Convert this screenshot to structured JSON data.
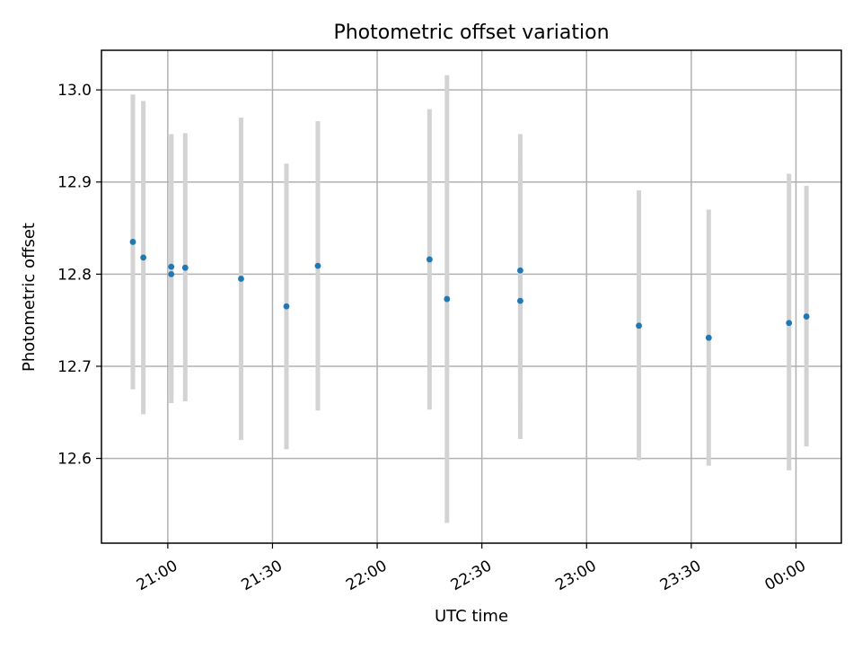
{
  "chart_data": {
    "type": "scatter",
    "title": "Photometric offset variation",
    "xlabel": "UTC time",
    "ylabel": "Photometric offset",
    "xaxis_kind": "time",
    "xlim": [
      "20:41",
      "00:13"
    ],
    "ylim": [
      12.508,
      13.043
    ],
    "x_tick_labels": [
      "21:00",
      "21:30",
      "22:00",
      "22:30",
      "23:00",
      "23:30",
      "00:00"
    ],
    "y_ticks": [
      12.6,
      12.7,
      12.8,
      12.9,
      13.0
    ],
    "y_tick_labels": [
      "12.6",
      "12.7",
      "12.8",
      "12.9",
      "13.0"
    ],
    "grid": true,
    "legend": "none",
    "colors": {
      "marker": "#1f77b4",
      "errorbar": "#d3d3d3",
      "grid": "#b0b0b0",
      "axes": "#000000"
    },
    "series": [
      {
        "points": [
          {
            "x": "20:50",
            "y": 12.835,
            "ylow": 12.675,
            "yhigh": 12.995
          },
          {
            "x": "20:53",
            "y": 12.818,
            "ylow": 12.648,
            "yhigh": 12.988
          },
          {
            "x": "21:01",
            "y": 12.8,
            "ylow": 12.66,
            "yhigh": 12.95
          },
          {
            "x": "21:01",
            "y": 12.808,
            "ylow": 12.668,
            "yhigh": 12.952
          },
          {
            "x": "21:05",
            "y": 12.807,
            "ylow": 12.662,
            "yhigh": 12.953
          },
          {
            "x": "21:21",
            "y": 12.795,
            "ylow": 12.62,
            "yhigh": 12.97
          },
          {
            "x": "21:34",
            "y": 12.765,
            "ylow": 12.61,
            "yhigh": 12.92
          },
          {
            "x": "21:43",
            "y": 12.809,
            "ylow": 12.652,
            "yhigh": 12.966
          },
          {
            "x": "22:15",
            "y": 12.816,
            "ylow": 12.653,
            "yhigh": 12.979
          },
          {
            "x": "22:20",
            "y": 12.773,
            "ylow": 12.53,
            "yhigh": 13.016
          },
          {
            "x": "22:41",
            "y": 12.771,
            "ylow": 12.621,
            "yhigh": 12.921
          },
          {
            "x": "22:41",
            "y": 12.804,
            "ylow": 12.656,
            "yhigh": 12.952
          },
          {
            "x": "23:15",
            "y": 12.744,
            "ylow": 12.598,
            "yhigh": 12.891
          },
          {
            "x": "23:35",
            "y": 12.731,
            "ylow": 12.592,
            "yhigh": 12.87
          },
          {
            "x": "23:58",
            "y": 12.747,
            "ylow": 12.587,
            "yhigh": 12.909
          },
          {
            "x": "00:03",
            "y": 12.754,
            "ylow": 12.613,
            "yhigh": 12.896
          }
        ]
      }
    ]
  }
}
